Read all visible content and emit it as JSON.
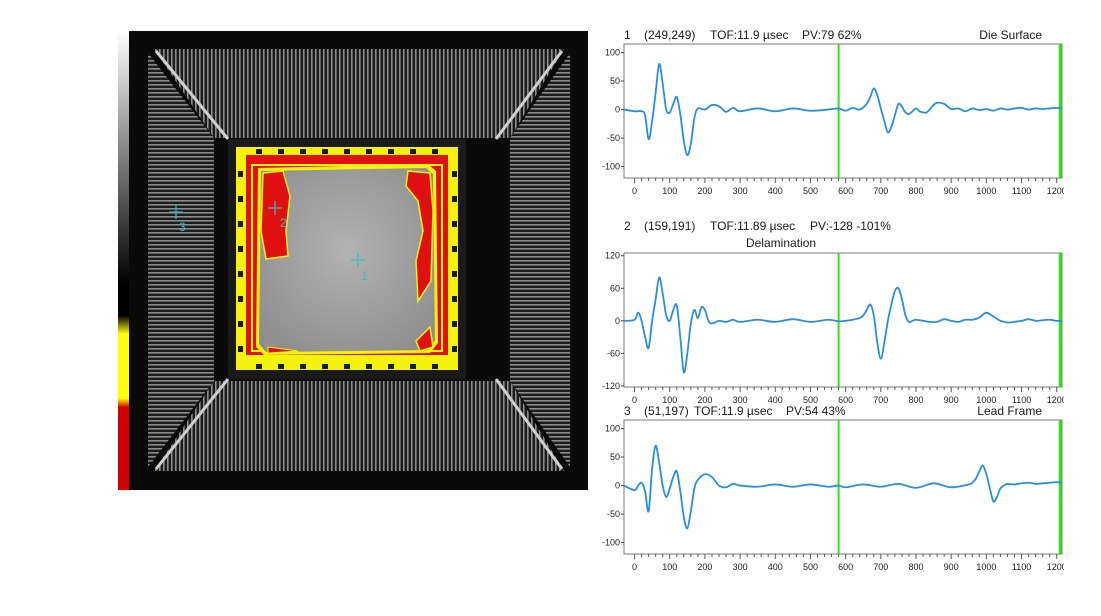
{
  "scan_image": {
    "markers": [
      {
        "label": "1"
      },
      {
        "label": "2"
      },
      {
        "label": "3"
      }
    ],
    "colors": {
      "background": "#0a0a0a",
      "die": "#a9a9a9",
      "frame_highlight": "#f2f20a",
      "delamination": "#e01010",
      "marker": "#3fb8c8"
    }
  },
  "chart_data": [
    {
      "type": "line",
      "index": "1",
      "coordinates": "(249,249)",
      "tof": "TOF:11.9 µsec",
      "pv": "PV:79 62%",
      "label": "Die Surface",
      "xlim": [
        -30,
        1215
      ],
      "ylim": [
        -120,
        115
      ],
      "yticks": [
        100,
        50,
        0,
        -50,
        -100
      ],
      "xticks": [
        0,
        100,
        200,
        300,
        400,
        500,
        600,
        700,
        800,
        900,
        1000,
        1100,
        1200
      ],
      "gates": [
        580,
        1210
      ],
      "line_color": "#2a8ee0",
      "gate_color": "#2fe01a",
      "series": [
        {
          "x": [
            -30,
            0,
            20,
            30,
            40,
            50,
            60,
            70,
            80,
            90,
            100,
            110,
            120,
            130,
            140,
            150,
            160,
            170,
            180,
            200,
            220,
            240,
            260,
            280,
            300,
            350,
            400,
            450,
            500,
            550,
            580,
            600,
            620,
            640,
            660,
            670,
            680,
            690,
            700,
            710,
            720,
            730,
            740,
            750,
            760,
            770,
            780,
            790,
            800,
            810,
            820,
            830,
            840,
            850,
            860,
            880,
            900,
            920,
            940,
            960,
            980,
            1000,
            1020,
            1040,
            1060,
            1080,
            1100,
            1120,
            1140,
            1160,
            1180,
            1200,
            1215
          ],
          "y": [
            0,
            -3,
            -3,
            -10,
            -52,
            -20,
            30,
            80,
            45,
            0,
            -5,
            10,
            22,
            -8,
            -55,
            -80,
            -60,
            -15,
            2,
            0,
            8,
            6,
            -4,
            3,
            -3,
            2,
            -3,
            2,
            -2,
            0,
            2,
            -2,
            3,
            0,
            10,
            22,
            37,
            25,
            2,
            -20,
            -40,
            -30,
            -10,
            10,
            5,
            -5,
            -8,
            -3,
            2,
            -3,
            -5,
            -5,
            1,
            8,
            12,
            10,
            1,
            2,
            -3,
            2,
            -1,
            1,
            -2,
            2,
            0,
            2,
            3,
            0,
            2,
            1,
            2,
            3,
            2
          ]
        }
      ]
    },
    {
      "type": "line",
      "index": "2",
      "coordinates": "(159,191)",
      "tof": "TOF:11.89 µsec",
      "pv": "PV:-128 -101%",
      "label": "Delamination",
      "xlim": [
        -30,
        1215
      ],
      "ylim": [
        -122,
        125
      ],
      "yticks": [
        120,
        60,
        0,
        -60,
        -120
      ],
      "xticks": [
        0,
        100,
        200,
        300,
        400,
        500,
        600,
        700,
        800,
        900,
        1000,
        1100,
        1200
      ],
      "gates": [
        580,
        1210
      ],
      "line_color": "#2a8ee0",
      "gate_color": "#2fe01a",
      "series": [
        {
          "x": [
            -30,
            0,
            10,
            20,
            30,
            40,
            50,
            60,
            70,
            80,
            90,
            100,
            110,
            120,
            130,
            140,
            150,
            160,
            170,
            180,
            190,
            200,
            210,
            220,
            240,
            260,
            280,
            300,
            350,
            400,
            450,
            500,
            550,
            580,
            600,
            620,
            640,
            650,
            660,
            670,
            680,
            690,
            700,
            710,
            720,
            730,
            740,
            750,
            760,
            770,
            780,
            790,
            800,
            820,
            840,
            860,
            880,
            900,
            920,
            940,
            960,
            980,
            1000,
            1020,
            1040,
            1060,
            1080,
            1100,
            1120,
            1140,
            1160,
            1180,
            1200,
            1215
          ],
          "y": [
            0,
            2,
            15,
            0,
            -30,
            -50,
            0,
            40,
            80,
            50,
            10,
            0,
            20,
            28,
            -30,
            -95,
            -60,
            -5,
            20,
            5,
            25,
            20,
            0,
            -5,
            0,
            -2,
            2,
            -2,
            2,
            -2,
            3,
            -2,
            2,
            -1,
            0,
            2,
            5,
            10,
            20,
            30,
            10,
            -40,
            -70,
            -40,
            0,
            30,
            55,
            60,
            40,
            10,
            -2,
            0,
            2,
            0,
            -2,
            -2,
            3,
            0,
            -2,
            2,
            2,
            6,
            15,
            8,
            0,
            -3,
            -2,
            0,
            3,
            0,
            1,
            2,
            0,
            0
          ]
        }
      ]
    },
    {
      "type": "line",
      "index": "3",
      "coordinates": "(51,197)",
      "tof": "TOF:11.9 µsec",
      "pv": "PV:54 43%",
      "label": "Lead Frame",
      "xlim": [
        -30,
        1215
      ],
      "ylim": [
        -120,
        115
      ],
      "yticks": [
        100,
        50,
        0,
        -50,
        -100
      ],
      "xticks": [
        0,
        100,
        200,
        300,
        400,
        500,
        600,
        700,
        800,
        900,
        1000,
        1100,
        1200
      ],
      "gates": [
        580,
        1210
      ],
      "line_color": "#2a8ee0",
      "gate_color": "#2fe01a",
      "series": [
        {
          "x": [
            -30,
            0,
            10,
            20,
            30,
            40,
            50,
            60,
            70,
            80,
            90,
            100,
            110,
            120,
            130,
            140,
            150,
            160,
            170,
            180,
            200,
            220,
            240,
            260,
            280,
            300,
            350,
            400,
            450,
            500,
            550,
            580,
            600,
            650,
            700,
            750,
            800,
            850,
            900,
            950,
            960,
            970,
            980,
            990,
            1000,
            1010,
            1020,
            1030,
            1040,
            1050,
            1060,
            1080,
            1100,
            1120,
            1140,
            1160,
            1180,
            1200,
            1215
          ],
          "y": [
            0,
            -8,
            0,
            5,
            -10,
            -45,
            30,
            70,
            40,
            0,
            -20,
            -5,
            15,
            25,
            -10,
            -55,
            -75,
            -45,
            -5,
            10,
            20,
            15,
            0,
            -3,
            3,
            0,
            -2,
            2,
            -2,
            2,
            -2,
            0,
            -3,
            2,
            -2,
            3,
            -4,
            4,
            -3,
            2,
            5,
            12,
            25,
            35,
            20,
            -5,
            -28,
            -20,
            -5,
            0,
            3,
            2,
            4,
            5,
            3,
            4,
            5,
            6,
            5
          ]
        }
      ]
    }
  ]
}
